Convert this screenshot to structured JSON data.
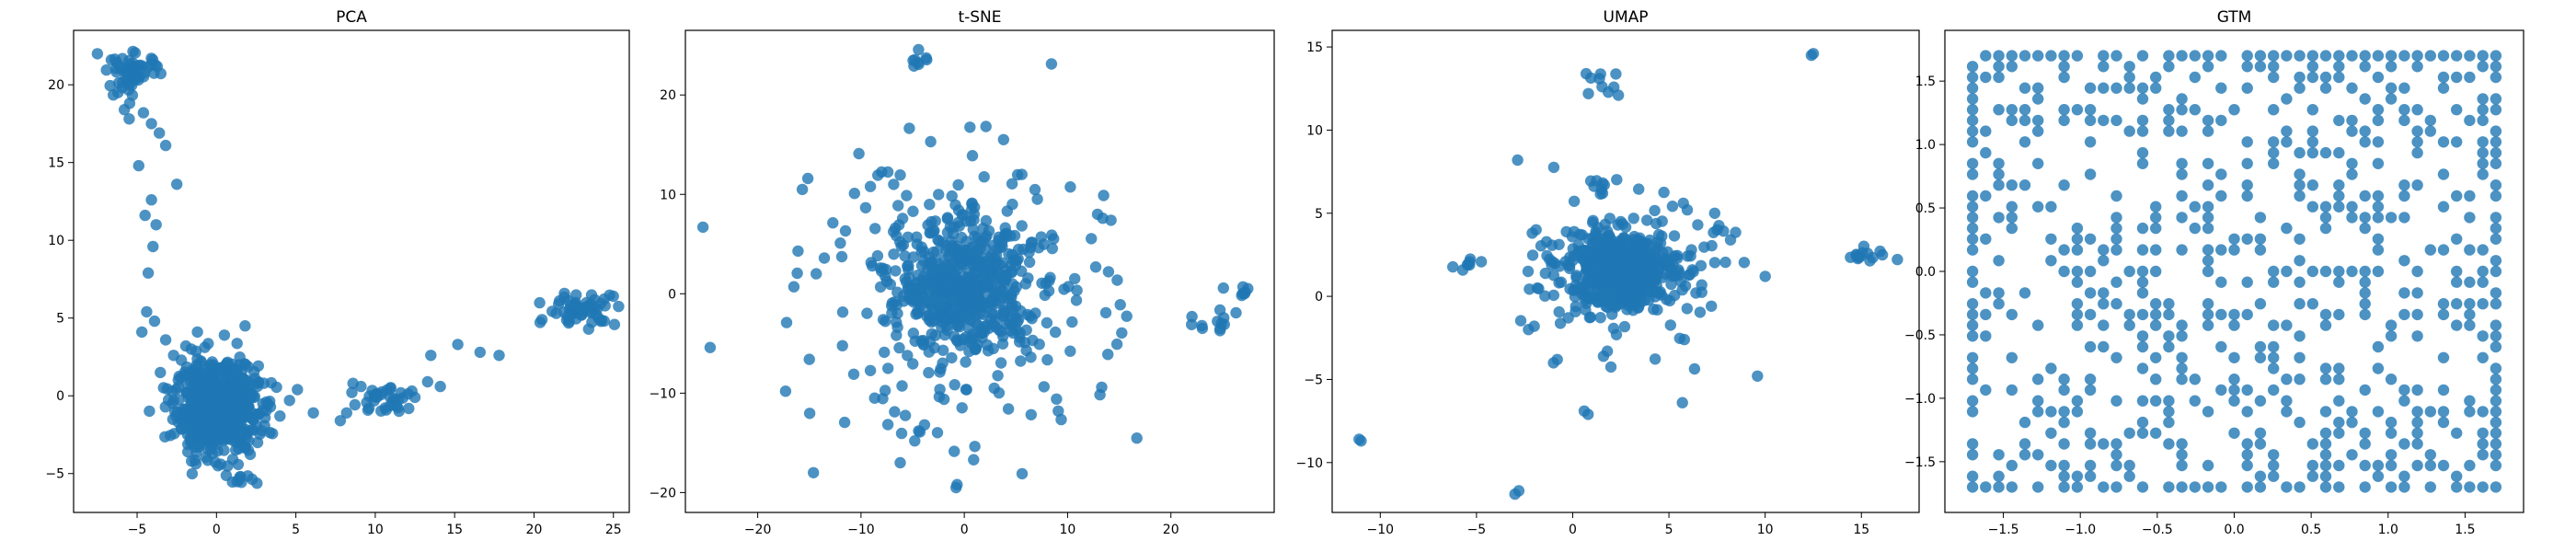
{
  "chart_data": [
    {
      "type": "scatter",
      "title": "PCA",
      "xlabel": "",
      "ylabel": "",
      "xlim": [
        -9,
        26
      ],
      "ylim": [
        -7.5,
        23.5
      ],
      "xticks": [
        -5,
        0,
        5,
        10,
        15,
        20,
        25
      ],
      "yticks": [
        -5,
        0,
        5,
        10,
        15,
        20
      ],
      "xtick_labels": [
        "−5",
        "0",
        "5",
        "10",
        "15",
        "20",
        "25"
      ],
      "ytick_labels": [
        "−5",
        "0",
        "5",
        "10",
        "15",
        "20"
      ],
      "color": "#1f77b4",
      "grid": false,
      "clusters": [
        {
          "cx": 0,
          "cy": -0.8,
          "sx": 1.3,
          "sy": 1.4,
          "n": 700
        },
        {
          "cx": -5.2,
          "cy": 20.8,
          "sx": 0.8,
          "sy": 0.6,
          "n": 60
        },
        {
          "cx": 23,
          "cy": 5.6,
          "sx": 1.1,
          "sy": 0.5,
          "n": 55
        },
        {
          "cx": 10.8,
          "cy": -0.3,
          "sx": 1.2,
          "sy": 0.6,
          "n": 35
        },
        {
          "cx": 1.8,
          "cy": -5.4,
          "sx": 0.7,
          "sy": 0.3,
          "n": 10
        }
      ],
      "points": [
        [
          -7.5,
          22
        ],
        [
          -6.2,
          19.5
        ],
        [
          -5.8,
          18.4
        ],
        [
          -5.5,
          17.8
        ],
        [
          -4.6,
          18.2
        ],
        [
          -4.1,
          17.5
        ],
        [
          -3.6,
          16.9
        ],
        [
          -3.2,
          16.1
        ],
        [
          -2.5,
          13.6
        ],
        [
          -4.9,
          14.8
        ],
        [
          -4.1,
          12.6
        ],
        [
          -4.5,
          11.6
        ],
        [
          -3.8,
          11
        ],
        [
          -4,
          9.6
        ],
        [
          -4.3,
          7.9
        ],
        [
          -4.4,
          5.4
        ],
        [
          -3.9,
          4.8
        ],
        [
          -4.7,
          4.1
        ],
        [
          -3.2,
          3.6
        ],
        [
          -2.7,
          2.6
        ],
        [
          -1.2,
          4.1
        ],
        [
          1.8,
          4.5
        ],
        [
          0.5,
          3.9
        ],
        [
          5.1,
          0.4
        ],
        [
          4.6,
          -0.3
        ],
        [
          4,
          -1.3
        ],
        [
          6.1,
          -1.1
        ],
        [
          7.8,
          -1.6
        ],
        [
          8.2,
          -1.1
        ],
        [
          8.6,
          0.8
        ],
        [
          9.1,
          0.6
        ],
        [
          13.5,
          2.6
        ],
        [
          15.2,
          3.3
        ],
        [
          16.6,
          2.8
        ],
        [
          17.8,
          2.6
        ],
        [
          14.1,
          0.6
        ],
        [
          13.3,
          0.9
        ],
        [
          12.5,
          -0.1
        ],
        [
          20.5,
          4.9
        ],
        [
          21.4,
          5.3
        ],
        [
          25,
          6.4
        ]
      ]
    },
    {
      "type": "scatter",
      "title": "t-SNE",
      "xlabel": "",
      "ylabel": "",
      "xlim": [
        -27,
        30
      ],
      "ylim": [
        -22,
        26.5
      ],
      "xticks": [
        -20,
        -10,
        0,
        10,
        20
      ],
      "yticks": [
        -20,
        -10,
        0,
        10,
        20
      ],
      "xtick_labels": [
        "−20",
        "−10",
        "0",
        "10",
        "20"
      ],
      "ytick_labels": [
        "−20",
        "−10",
        "0",
        "10",
        "20"
      ],
      "color": "#1f77b4",
      "grid": false,
      "clusters": [
        {
          "cx": 0,
          "cy": 0.5,
          "sx": 3,
          "sy": 3,
          "n": 450
        },
        {
          "cx": 0,
          "cy": 0,
          "sx": 7,
          "sy": 7,
          "n": 250
        },
        {
          "cx": 24.8,
          "cy": -2.5,
          "sx": 0.9,
          "sy": 0.8,
          "n": 10
        },
        {
          "cx": 27.3,
          "cy": 0.2,
          "sx": 0.3,
          "sy": 0.3,
          "n": 6
        },
        {
          "cx": -4.5,
          "cy": 23.5,
          "sx": 0.6,
          "sy": 0.6,
          "n": 8
        }
      ],
      "points": [
        [
          -25.3,
          6.7
        ],
        [
          -24.6,
          -5.4
        ],
        [
          -17.3,
          -9.8
        ],
        [
          -14.6,
          -18
        ],
        [
          -0.8,
          -19.5
        ],
        [
          -0.7,
          -19.2
        ],
        [
          5.6,
          -18.1
        ],
        [
          -4.8,
          -14.8
        ],
        [
          -4.3,
          -13.9
        ],
        [
          12.9,
          8
        ],
        [
          13.4,
          7.6
        ],
        [
          14.2,
          7.4
        ],
        [
          -17.2,
          -2.9
        ],
        [
          -16.1,
          4.3
        ],
        [
          -16.5,
          0.7
        ],
        [
          -15,
          -6.6
        ],
        [
          13.3,
          -9.4
        ],
        [
          13.9,
          -6.1
        ],
        [
          15.1,
          -1.1
        ],
        [
          -12,
          5.1
        ],
        [
          3.8,
          15.5
        ],
        [
          -10.2,
          14.1
        ],
        [
          -10.7,
          -8.1
        ],
        [
          9.1,
          -11.8
        ],
        [
          0.9,
          -16.7
        ],
        [
          -6.2,
          -17
        ],
        [
          22,
          -3.1
        ],
        [
          23,
          -3.2
        ]
      ]
    },
    {
      "type": "scatter",
      "title": "UMAP",
      "xlabel": "",
      "ylabel": "",
      "xlim": [
        -12.5,
        18
      ],
      "ylim": [
        -13,
        16
      ],
      "xticks": [
        -10,
        -5,
        0,
        5,
        10,
        15
      ],
      "yticks": [
        -10,
        -5,
        0,
        5,
        10,
        15
      ],
      "xtick_labels": [
        "−10",
        "−5",
        "0",
        "5",
        "10",
        "15"
      ],
      "ytick_labels": [
        "−10",
        "−5",
        "0",
        "5",
        "10",
        "15"
      ],
      "color": "#1f77b4",
      "grid": false,
      "clusters": [
        {
          "cx": 2.6,
          "cy": 1.6,
          "sx": 1.4,
          "sy": 1.2,
          "n": 500
        },
        {
          "cx": 2.8,
          "cy": 1.5,
          "sx": 2.4,
          "sy": 2.1,
          "n": 120
        },
        {
          "cx": 15.2,
          "cy": 2.5,
          "sx": 0.8,
          "sy": 0.25,
          "n": 14
        },
        {
          "cx": -5.2,
          "cy": 1.9,
          "sx": 0.6,
          "sy": 0.15,
          "n": 8
        },
        {
          "cx": 1.4,
          "cy": 13,
          "sx": 0.5,
          "sy": 0.5,
          "n": 10
        },
        {
          "cx": 1.6,
          "cy": 6.7,
          "sx": 0.5,
          "sy": 0.4,
          "n": 8
        }
      ],
      "points": [
        [
          -11,
          -8.7
        ],
        [
          -11.1,
          -8.6
        ],
        [
          -3,
          -11.9
        ],
        [
          -2.8,
          -11.7
        ],
        [
          12.4,
          14.5
        ],
        [
          12.5,
          14.6
        ],
        [
          -1.9,
          4
        ],
        [
          -2.1,
          3.8
        ],
        [
          0.8,
          -7.1
        ],
        [
          0.6,
          -6.9
        ],
        [
          5.7,
          -6.4
        ],
        [
          -2.3,
          -2
        ],
        [
          -2,
          -1.8
        ],
        [
          -1,
          -4
        ],
        [
          -0.8,
          -3.8
        ],
        [
          1.6,
          -3.6
        ],
        [
          1.8,
          -3.3
        ],
        [
          10,
          1.2
        ],
        [
          7.5,
          4
        ],
        [
          8.2,
          3.4
        ],
        [
          -1.1,
          1.9
        ],
        [
          5.8,
          -2.6
        ],
        [
          9.6,
          -4.8
        ],
        [
          6.5,
          4.3
        ]
      ]
    },
    {
      "type": "scatter",
      "title": "GTM",
      "xlabel": "",
      "ylabel": "",
      "xlim": [
        -1.88,
        1.88
      ],
      "ylim": [
        -1.9,
        1.9
      ],
      "xticks": [
        -1.5,
        -1,
        -0.5,
        0,
        0.5,
        1,
        1.5
      ],
      "yticks": [
        -1.5,
        -1,
        -0.5,
        0,
        0.5,
        1,
        1.5
      ],
      "xtick_labels": [
        "−1.5",
        "−1.0",
        "−0.5",
        "0.0",
        "0.5",
        "1.0",
        "1.5"
      ],
      "ytick_labels": [
        "−1.5",
        "−1.0",
        "−0.5",
        "0.0",
        "0.5",
        "1.0",
        "1.5"
      ],
      "color": "#1f77b4",
      "grid": false,
      "lattice": {
        "min": -1.7,
        "max": 1.7,
        "steps": 40,
        "fill": 0.32,
        "edge_fill": 0.85
      },
      "points": []
    }
  ]
}
